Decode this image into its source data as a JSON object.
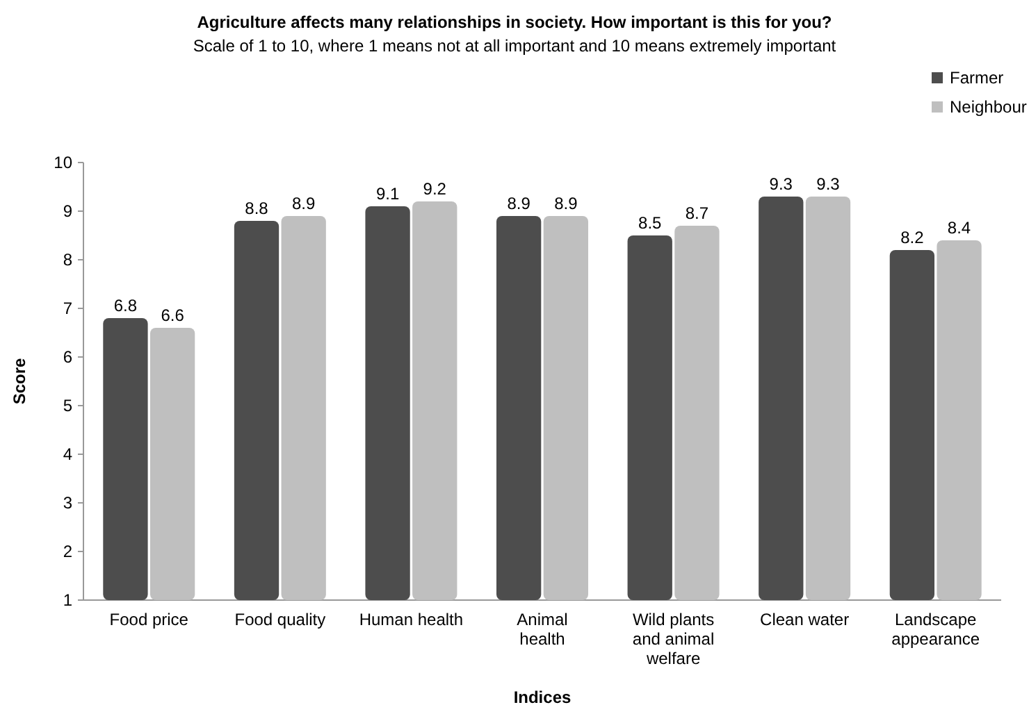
{
  "chart_data": {
    "type": "bar",
    "title": "Agriculture affects many relationships in society. How important is this for you?",
    "subtitle": "Scale of 1 to 10, where 1 means not at all important and 10 means extremely important",
    "xlabel": "Indices",
    "ylabel": "Score",
    "categories": [
      "Food price",
      "Food quality",
      "Human health",
      "Animal health",
      "Wild plants and animal welfare",
      "Clean water",
      "Landscape appearance"
    ],
    "series": [
      {
        "name": "Farmer",
        "color": "#4d4d4d",
        "values": [
          6.8,
          8.8,
          9.1,
          8.9,
          8.5,
          9.3,
          8.2
        ]
      },
      {
        "name": "Neighbour",
        "color": "#bfbfbf",
        "values": [
          6.6,
          8.9,
          9.2,
          8.9,
          8.7,
          9.3,
          8.4
        ]
      }
    ],
    "ylim": [
      1,
      10
    ],
    "yticks": [
      1,
      2,
      3,
      4,
      5,
      6,
      7,
      8,
      9,
      10
    ],
    "grid": false,
    "legend": "top right",
    "data_labels": true
  }
}
